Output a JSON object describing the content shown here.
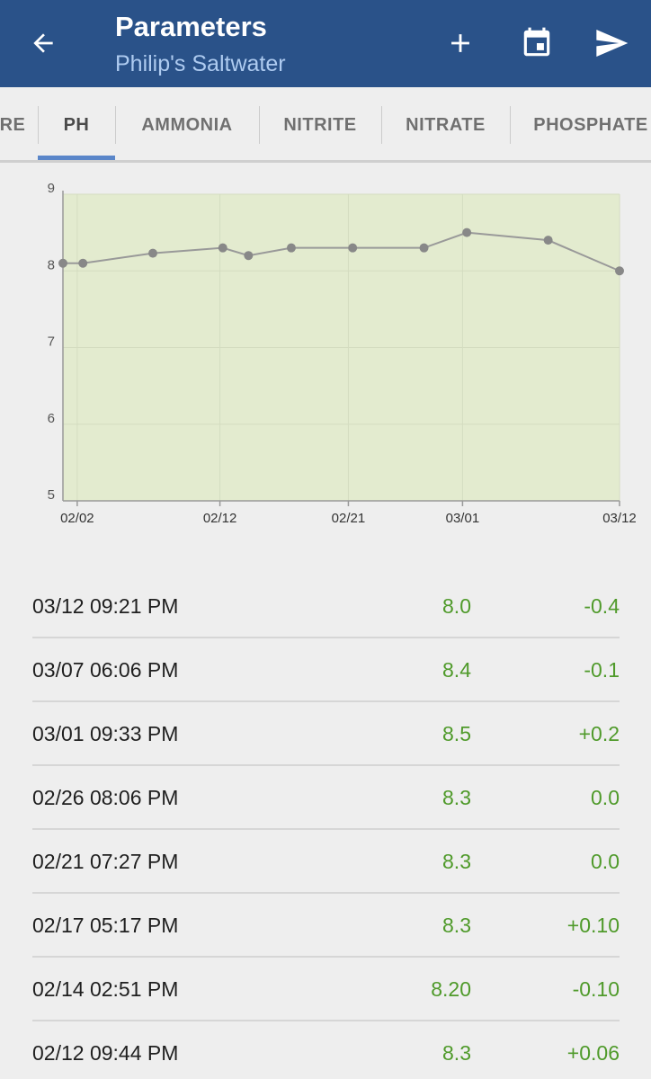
{
  "appbar": {
    "title": "Parameters",
    "subtitle": "Philip's Saltwater",
    "icons": {
      "back": "arrow-back-icon",
      "add": "plus-icon",
      "calendar": "calendar-icon",
      "send": "send-icon"
    },
    "background": "#2a5289"
  },
  "tabs": [
    {
      "label": "RE"
    },
    {
      "label": "PH",
      "active": true
    },
    {
      "label": "AMMONIA"
    },
    {
      "label": "NITRITE"
    },
    {
      "label": "NITRATE"
    },
    {
      "label": "PHOSPHATE"
    }
  ],
  "chart_data": {
    "type": "line",
    "ylim": [
      5,
      9
    ],
    "y_ticks": [
      "5",
      "6",
      "7",
      "8",
      "9"
    ],
    "x_tick_labels": [
      "02/02",
      "02/12",
      "02/21",
      "03/01",
      "03/12"
    ],
    "x_tick_days": [
      1,
      11,
      20,
      28,
      39
    ],
    "xlim_days": [
      0,
      39
    ],
    "grid": true,
    "background": "#e3ebcf",
    "line_color": "#999999",
    "points": [
      {
        "day": 0,
        "y": 8.1
      },
      {
        "day": 1.4,
        "y": 8.1
      },
      {
        "day": 6.3,
        "y": 8.23
      },
      {
        "day": 11.2,
        "y": 8.3
      },
      {
        "day": 13.0,
        "y": 8.2
      },
      {
        "day": 16.0,
        "y": 8.3
      },
      {
        "day": 20.3,
        "y": 8.3
      },
      {
        "day": 25.3,
        "y": 8.3
      },
      {
        "day": 28.3,
        "y": 8.5
      },
      {
        "day": 34.0,
        "y": 8.4
      },
      {
        "day": 39.0,
        "y": 8.0
      }
    ]
  },
  "readings": [
    {
      "date": "03/12 09:21 PM",
      "value": "8.0",
      "delta": "-0.4"
    },
    {
      "date": "03/07 06:06 PM",
      "value": "8.4",
      "delta": "-0.1"
    },
    {
      "date": "03/01 09:33 PM",
      "value": "8.5",
      "delta": "+0.2"
    },
    {
      "date": "02/26 08:06 PM",
      "value": "8.3",
      "delta": "0.0"
    },
    {
      "date": "02/21 07:27 PM",
      "value": "8.3",
      "delta": "0.0"
    },
    {
      "date": "02/17 05:17 PM",
      "value": "8.3",
      "delta": "+0.10"
    },
    {
      "date": "02/14 02:51 PM",
      "value": "8.20",
      "delta": "-0.10"
    },
    {
      "date": "02/12 09:44 PM",
      "value": "8.3",
      "delta": "+0.06"
    }
  ]
}
